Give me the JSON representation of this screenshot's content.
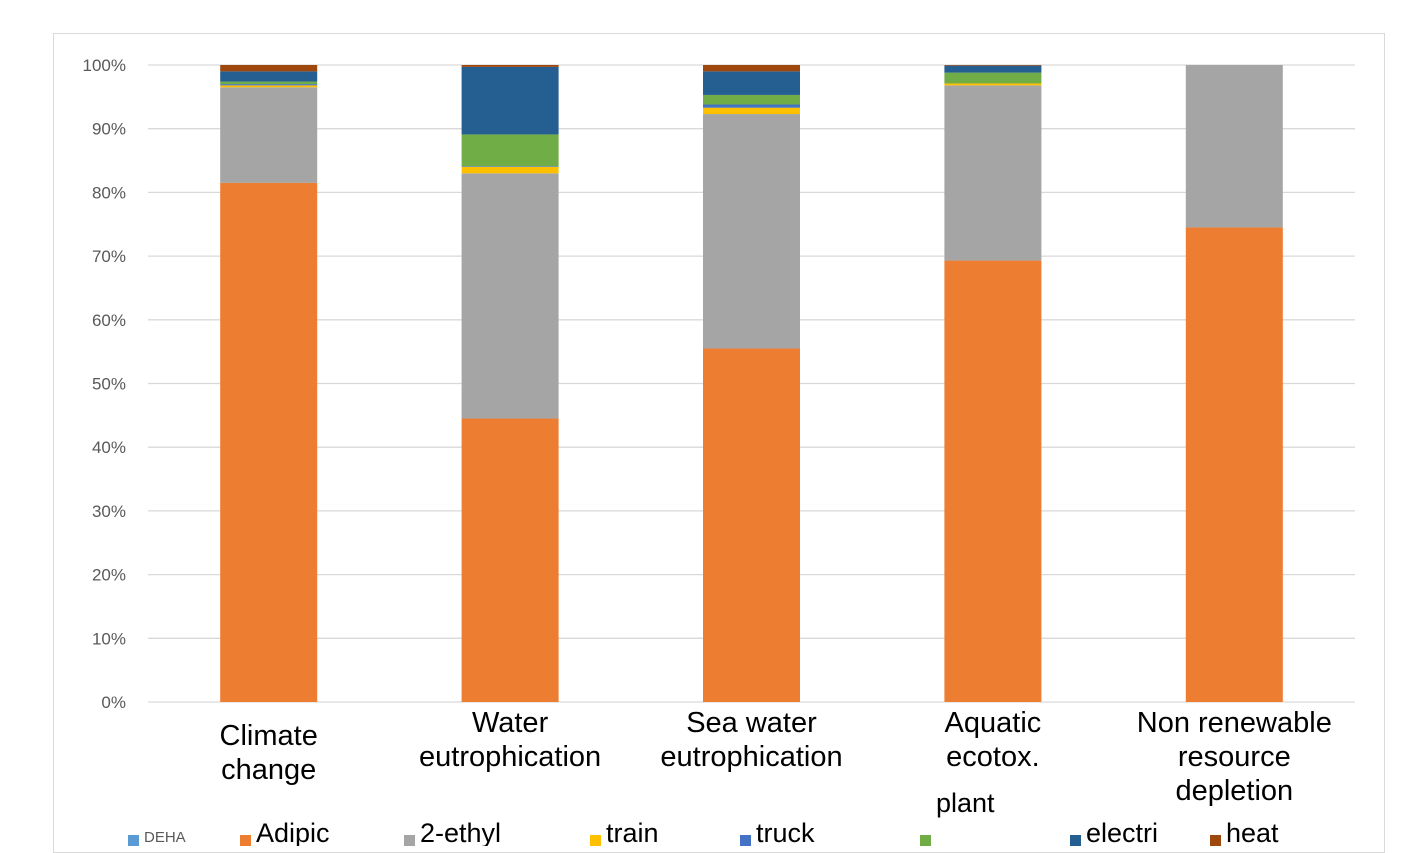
{
  "chart_data": {
    "type": "bar",
    "stacked": true,
    "normalized": true,
    "categories": [
      [
        "Climate",
        "change"
      ],
      [
        "Water",
        "eutrophication"
      ],
      [
        "Sea water",
        "eutrophication"
      ],
      [
        "Aquatic",
        "ecotox."
      ],
      [
        "Non renewable",
        "resource",
        "depletion"
      ]
    ],
    "ylim": [
      0,
      100
    ],
    "yticks": [
      "0%",
      "10%",
      "20%",
      "30%",
      "40%",
      "50%",
      "60%",
      "70%",
      "80%",
      "90%",
      "100%"
    ],
    "grid": true,
    "legend_position": "bottom",
    "series": [
      {
        "name": "DEHA",
        "color": "#5b9bd5",
        "values": [
          0,
          0,
          0,
          0,
          0
        ]
      },
      {
        "name": "Adipic",
        "color": "#ed7d31",
        "values": [
          81.5,
          44.5,
          55.5,
          69.3,
          74.5
        ]
      },
      {
        "name": "2-ethyl",
        "color": "#a5a5a5",
        "values": [
          15.0,
          38.5,
          36.8,
          27.5,
          25.5
        ]
      },
      {
        "name": "train",
        "color": "#ffc000",
        "values": [
          0.3,
          1.0,
          1.0,
          0.3,
          0
        ]
      },
      {
        "name": "truck",
        "color": "#4472c4",
        "values": [
          0.2,
          0.1,
          0.5,
          0,
          0
        ]
      },
      {
        "name": "plant",
        "color": "#70ad47",
        "values": [
          0.4,
          5.0,
          1.5,
          1.7,
          0
        ]
      },
      {
        "name": "electri",
        "color": "#255e91",
        "values": [
          1.6,
          10.6,
          3.7,
          1.1,
          0
        ]
      },
      {
        "name": "heat",
        "color": "#9e480e",
        "values": [
          1.0,
          0.3,
          1.0,
          0.1,
          0
        ]
      }
    ]
  }
}
